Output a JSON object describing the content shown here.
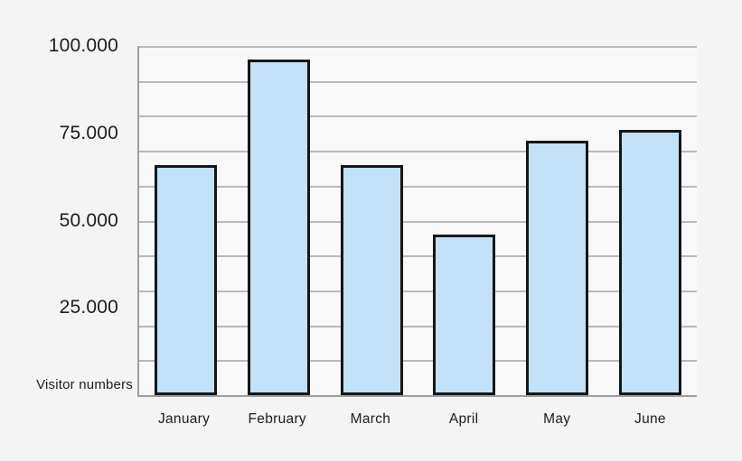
{
  "chart_data": {
    "type": "bar",
    "title": "",
    "categories": [
      "January",
      "February",
      "March",
      "April",
      "May",
      "June"
    ],
    "values": [
      66000,
      96000,
      66000,
      46000,
      73000,
      76000
    ],
    "xlabel": "",
    "ylabel": "Visitor numbers",
    "ylim": [
      0,
      100000
    ],
    "gridline_interval": 10000,
    "grid": true,
    "legend": false,
    "y_ticks": [
      {
        "value": 100000,
        "label": "100.000"
      },
      {
        "value": 75000,
        "label": "75.000"
      },
      {
        "value": 50000,
        "label": "50.000"
      },
      {
        "value": 25000,
        "label": "25.000"
      }
    ],
    "colors": {
      "bar_fill": "#c3e1f8",
      "bar_border": "#161616",
      "grid": "#b9b9b9",
      "axis": "#9e9e9e",
      "text": "#1d1d1d",
      "page_background": "#f4f4f5",
      "plot_background": "#f8f8f8"
    }
  }
}
